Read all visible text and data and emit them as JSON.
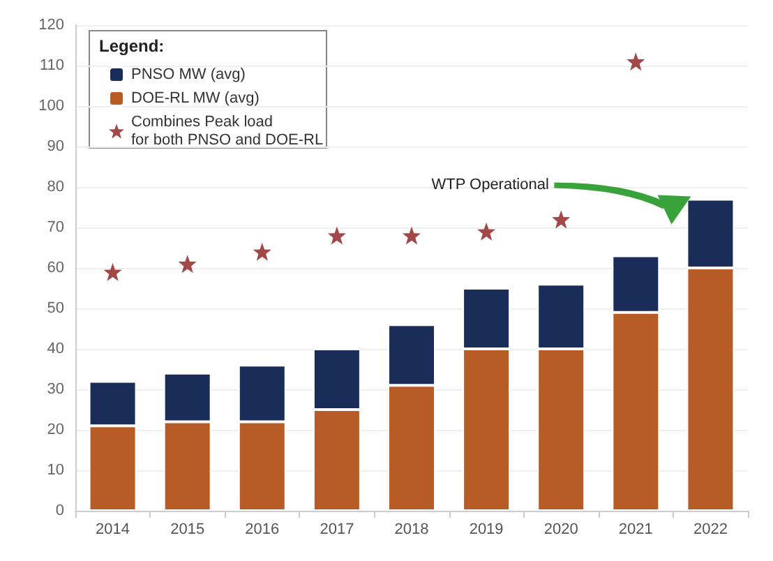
{
  "chart_data": {
    "type": "bar",
    "stacked": true,
    "categories": [
      "2014",
      "2015",
      "2016",
      "2017",
      "2018",
      "2019",
      "2020",
      "2021",
      "2022"
    ],
    "series": [
      {
        "name": "DOE-RL MW (avg)",
        "color": "#b85c27",
        "values": [
          21,
          22,
          22,
          25,
          31,
          40,
          40,
          49,
          60
        ]
      },
      {
        "name": "PNSO MW (avg)",
        "color": "#1a2c58",
        "values": [
          11,
          12,
          14,
          15,
          15,
          15,
          16,
          14,
          17
        ]
      },
      {
        "name": "Combines Peak load\nfor both PNSO and DOE-RL",
        "type": "scatter",
        "marker": "star",
        "color": "#8b1a1a",
        "values": [
          59,
          61,
          64,
          68,
          68,
          69,
          72,
          111,
          null
        ]
      }
    ],
    "ylim": [
      0,
      120
    ],
    "yticks": [
      0,
      10,
      20,
      30,
      40,
      50,
      60,
      70,
      80,
      90,
      100,
      110,
      120
    ],
    "grid": "y",
    "legend": "top left",
    "legend_title": "Legend:",
    "annotations": [
      "WTP Operational"
    ]
  }
}
